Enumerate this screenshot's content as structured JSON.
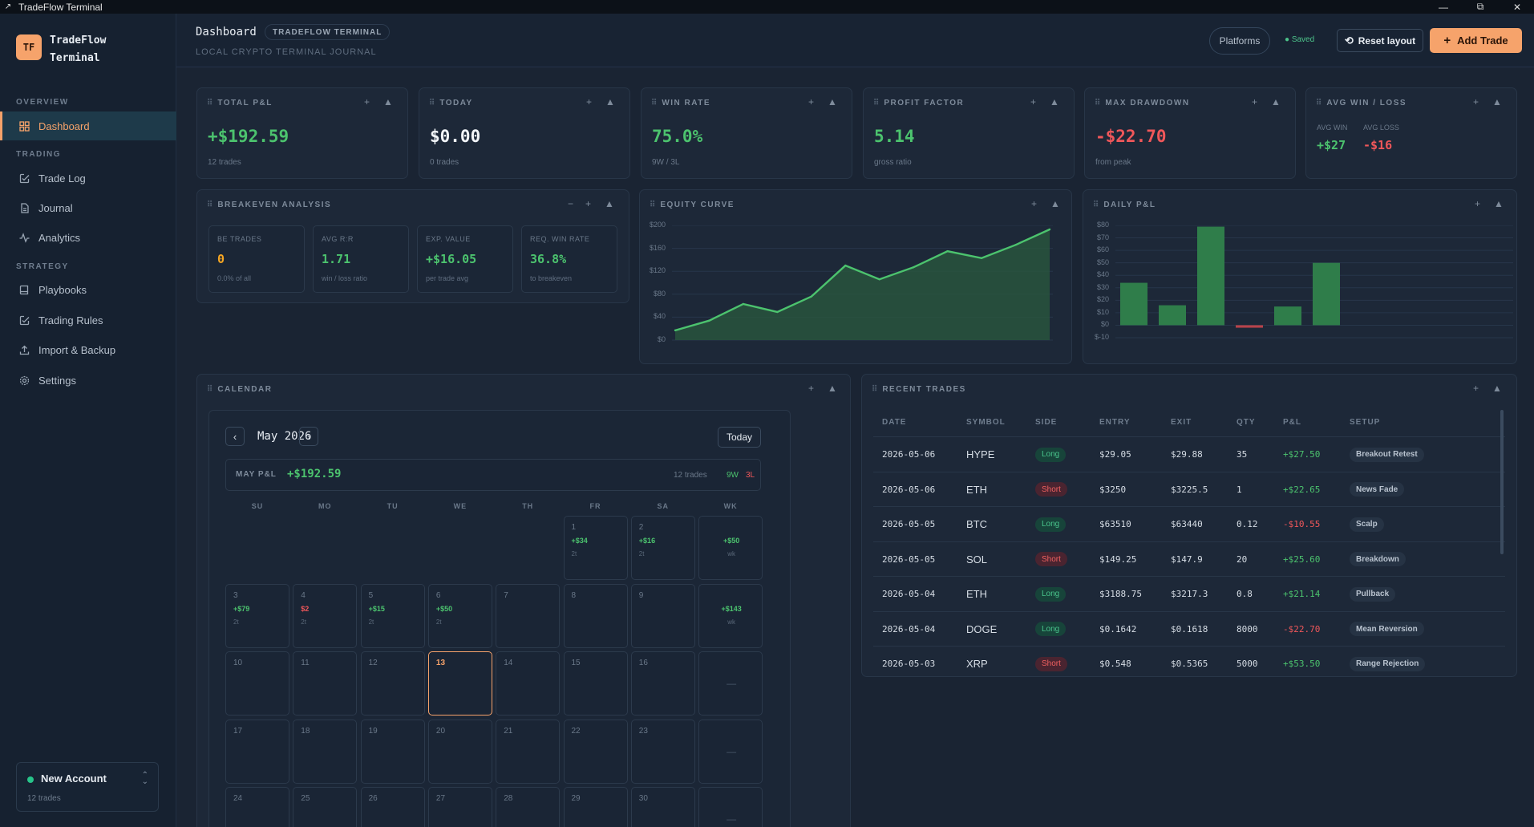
{
  "window": {
    "title": "TradeFlow Terminal",
    "controls": [
      "—",
      "⧉",
      "✕"
    ]
  },
  "sidebar": {
    "logo_initials": "TF",
    "brand_line1": "TradeFlow",
    "brand_line2": "Terminal",
    "sections": {
      "overview": "OVERVIEW",
      "trading": "TRADING",
      "strategy": "STRATEGY"
    },
    "items": [
      {
        "label": "Dashboard",
        "icon": "grid-icon"
      },
      {
        "label": "Trade Log",
        "icon": "checkbox-edit-icon"
      },
      {
        "label": "Journal",
        "icon": "document-icon"
      },
      {
        "label": "Analytics",
        "icon": "pulse-icon"
      },
      {
        "label": "Playbooks",
        "icon": "book-icon"
      },
      {
        "label": "Trading Rules",
        "icon": "checkbox-edit-icon"
      },
      {
        "label": "Import & Backup",
        "icon": "upload-icon"
      },
      {
        "label": "Settings",
        "icon": "gear-icon"
      }
    ],
    "account": {
      "name": "New Account",
      "trades": "12 trades",
      "status_color": "#27c48a"
    }
  },
  "header": {
    "title": "Dashboard",
    "badge": "TRADEFLOW TERMINAL",
    "subtitle": "LOCAL CRYPTO TERMINAL JOURNAL",
    "platforms_label": "Platforms",
    "saved_label": "● Saved",
    "reset_label": "Reset layout",
    "add_label": "Add Trade"
  },
  "kpis": [
    {
      "title": "TOTAL P&L",
      "value": "+$192.59",
      "sub": "12 trades",
      "tone": "green"
    },
    {
      "title": "TODAY",
      "value": "$0.00",
      "sub": "0 trades",
      "tone": "white"
    },
    {
      "title": "WIN RATE",
      "value": "75.0%",
      "sub": "9W / 3L",
      "tone": "green"
    },
    {
      "title": "PROFIT FACTOR",
      "value": "5.14",
      "sub": "gross ratio",
      "tone": "green"
    },
    {
      "title": "MAX DRAWDOWN",
      "value": "-$22.70",
      "sub": "from peak",
      "tone": "red"
    }
  ],
  "avg_win_loss": {
    "title": "AVG WIN / LOSS",
    "win_label": "AVG WIN",
    "loss_label": "AVG LOSS",
    "win": "+$27",
    "loss": "-$16"
  },
  "breakeven": {
    "title": "BREAKEVEN ANALYSIS",
    "items": [
      {
        "label": "BE TRADES",
        "value": "0",
        "sub": "0.0% of all",
        "tone": "amber"
      },
      {
        "label": "AVG R:R",
        "value": "1.71",
        "sub": "win / loss ratio",
        "tone": "green"
      },
      {
        "label": "EXP. VALUE",
        "value": "+$16.05",
        "sub": "per trade avg",
        "tone": "green"
      },
      {
        "label": "REQ. WIN RATE",
        "value": "36.8%",
        "sub": "to breakeven",
        "tone": "green"
      }
    ]
  },
  "equity_chart": {
    "title": "EQUITY CURVE",
    "chart_data": {
      "type": "area",
      "y_ticks": [
        "$200",
        "$160",
        "$120",
        "$80",
        "$40",
        "$0"
      ],
      "ylim": [
        0,
        200
      ],
      "values": [
        17,
        34,
        63,
        49,
        76,
        130,
        106,
        127,
        155,
        143,
        166,
        193
      ],
      "color": "#4cc36e"
    }
  },
  "daily_chart": {
    "title": "DAILY P&L",
    "chart_data": {
      "type": "bar",
      "y_ticks": [
        "$80",
        "$70",
        "$60",
        "$50",
        "$40",
        "$30",
        "$20",
        "$10",
        "$0",
        "$-10"
      ],
      "ylim": [
        -10,
        80
      ],
      "values": [
        34,
        16,
        79,
        -2,
        15,
        50
      ],
      "positive_color": "#2f7d4a",
      "negative_color": "#b8434a"
    }
  },
  "calendar": {
    "title": "CALENDAR",
    "month": "May 2026",
    "prev": "‹",
    "next": "›",
    "today_label": "Today",
    "pnl_label": "MAY P&L",
    "pnl_value": "+$192.59",
    "trades": "12 trades",
    "wins": "9W",
    "losses": "3L",
    "dow": [
      "SU",
      "MO",
      "TU",
      "WE",
      "TH",
      "FR",
      "SA",
      "WK"
    ],
    "weeks": [
      {
        "days": [
          {},
          {},
          {},
          {},
          {},
          {
            "n": "1",
            "p": "+$34",
            "t": "2t",
            "tone": "green"
          },
          {
            "n": "2",
            "p": "+$16",
            "t": "2t",
            "tone": "green"
          }
        ],
        "wk": {
          "p": "+$50",
          "t": "wk",
          "tone": "green"
        }
      },
      {
        "days": [
          {
            "n": "3",
            "p": "+$79",
            "t": "2t",
            "tone": "green"
          },
          {
            "n": "4",
            "p": "$2",
            "t": "2t",
            "tone": "red"
          },
          {
            "n": "5",
            "p": "+$15",
            "t": "2t",
            "tone": "green"
          },
          {
            "n": "6",
            "p": "+$50",
            "t": "2t",
            "tone": "green"
          },
          {
            "n": "7"
          },
          {
            "n": "8"
          },
          {
            "n": "9"
          }
        ],
        "wk": {
          "p": "+$143",
          "t": "wk",
          "tone": "green"
        }
      },
      {
        "days": [
          {
            "n": "10"
          },
          {
            "n": "11"
          },
          {
            "n": "12"
          },
          {
            "n": "13",
            "today": true
          },
          {
            "n": "14"
          },
          {
            "n": "15"
          },
          {
            "n": "16"
          }
        ],
        "wk": {
          "dash": "—"
        }
      },
      {
        "days": [
          {
            "n": "17"
          },
          {
            "n": "18"
          },
          {
            "n": "19"
          },
          {
            "n": "20"
          },
          {
            "n": "21"
          },
          {
            "n": "22"
          },
          {
            "n": "23"
          }
        ],
        "wk": {
          "dash": "—"
        }
      },
      {
        "days": [
          {
            "n": "24"
          },
          {
            "n": "25"
          },
          {
            "n": "26"
          },
          {
            "n": "27"
          },
          {
            "n": "28"
          },
          {
            "n": "29"
          },
          {
            "n": "30"
          }
        ],
        "wk": {
          "dash": "—"
        }
      }
    ]
  },
  "recent": {
    "title": "RECENT TRADES",
    "columns": [
      "DATE",
      "SYMBOL",
      "SIDE",
      "ENTRY",
      "EXIT",
      "QTY",
      "P&L",
      "SETUP"
    ],
    "rows": [
      {
        "date": "2026-05-06",
        "symbol": "HYPE",
        "side": "Long",
        "entry": "$29.05",
        "exit": "$29.88",
        "qty": "35",
        "pnl": "+$27.50",
        "setup": "Breakout Retest"
      },
      {
        "date": "2026-05-06",
        "symbol": "ETH",
        "side": "Short",
        "entry": "$3250",
        "exit": "$3225.5",
        "qty": "1",
        "pnl": "+$22.65",
        "setup": "News Fade"
      },
      {
        "date": "2026-05-05",
        "symbol": "BTC",
        "side": "Long",
        "entry": "$63510",
        "exit": "$63440",
        "qty": "0.12",
        "pnl": "-$10.55",
        "setup": "Scalp"
      },
      {
        "date": "2026-05-05",
        "symbol": "SOL",
        "side": "Short",
        "entry": "$149.25",
        "exit": "$147.9",
        "qty": "20",
        "pnl": "+$25.60",
        "setup": "Breakdown"
      },
      {
        "date": "2026-05-04",
        "symbol": "ETH",
        "side": "Long",
        "entry": "$3188.75",
        "exit": "$3217.3",
        "qty": "0.8",
        "pnl": "+$21.14",
        "setup": "Pullback"
      },
      {
        "date": "2026-05-04",
        "symbol": "DOGE",
        "side": "Long",
        "entry": "$0.1642",
        "exit": "$0.1618",
        "qty": "8000",
        "pnl": "-$22.70",
        "setup": "Mean Reversion"
      },
      {
        "date": "2026-05-03",
        "symbol": "XRP",
        "side": "Short",
        "entry": "$0.548",
        "exit": "$0.5365",
        "qty": "5000",
        "pnl": "+$53.50",
        "setup": "Range Rejection"
      }
    ]
  }
}
